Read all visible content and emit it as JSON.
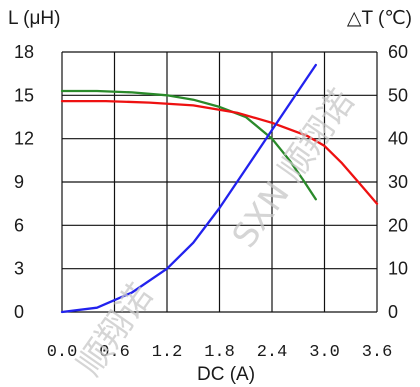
{
  "chart_data": {
    "type": "line",
    "title": "",
    "xlabel": "DC (A)",
    "ylabel_left": "L (μH)",
    "ylabel_right": "△T (℃)",
    "xlim": [
      0,
      3.6
    ],
    "ylim_left": [
      0,
      18
    ],
    "ylim_right": [
      0,
      60
    ],
    "grid": true,
    "x_ticks": [
      "0.0",
      "0.6",
      "1.2",
      "1.8",
      "2.4",
      "3.0",
      "3.6"
    ],
    "y_left_ticks": [
      "0",
      "3",
      "6",
      "9",
      "12",
      "15",
      "18"
    ],
    "y_right_ticks": [
      "0",
      "10",
      "20",
      "30",
      "40",
      "50",
      "60"
    ],
    "series": [
      {
        "axis": "left",
        "color": "#2a8a2a",
        "x": [
          0.0,
          0.4,
          0.8,
          1.2,
          1.5,
          1.8,
          2.1,
          2.4,
          2.6,
          2.75,
          2.9
        ],
        "y": [
          15.3,
          15.3,
          15.2,
          15.0,
          14.7,
          14.2,
          13.5,
          12.0,
          10.5,
          9.2,
          7.8
        ]
      },
      {
        "axis": "left",
        "color": "#ee1111",
        "x": [
          0.0,
          0.5,
          1.0,
          1.5,
          2.0,
          2.4,
          2.8,
          3.0,
          3.2,
          3.4,
          3.6
        ],
        "y": [
          14.6,
          14.6,
          14.5,
          14.3,
          13.8,
          13.1,
          12.2,
          11.5,
          10.3,
          8.9,
          7.5
        ]
      },
      {
        "axis": "right",
        "color": "#2222ee",
        "x": [
          0.0,
          0.4,
          0.8,
          1.2,
          1.5,
          1.8,
          2.1,
          2.4,
          2.6,
          2.8,
          2.9
        ],
        "y": [
          0,
          1,
          4.5,
          10,
          16,
          24,
          33,
          42,
          48,
          54,
          57
        ]
      }
    ]
  },
  "watermarks": [
    "SXN 顺翔诺",
    "顺翔诺"
  ]
}
